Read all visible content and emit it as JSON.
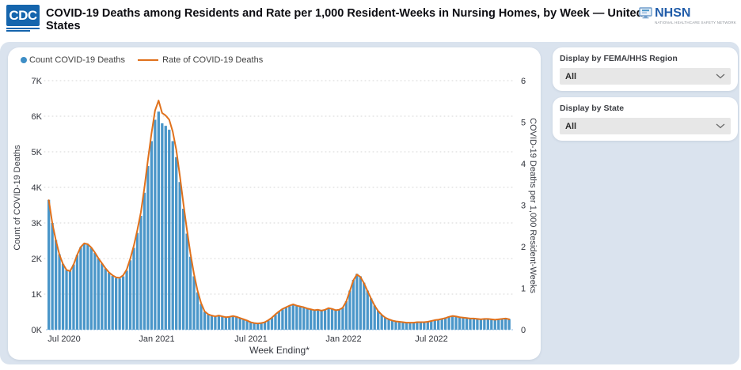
{
  "header": {
    "cdc_logo_text": "CDC",
    "title": "COVID-19 Deaths among Residents and Rate per 1,000 Resident-Weeks in Nursing Homes, by Week — United States",
    "nhsn_logo_text": "NHSN",
    "nhsn_subtitle": "NATIONAL HEALTHCARE SAFETY NETWORK"
  },
  "legend": {
    "count_label": "Count COVID-19 Deaths",
    "rate_label": "Rate of COVID-19 Deaths"
  },
  "filters": [
    {
      "label": "Display by FEMA/HHS Region",
      "value": "All"
    },
    {
      "label": "Display by State",
      "value": "All"
    }
  ],
  "colors": {
    "bar": "#4A96C9",
    "line": "#E0711C",
    "legend_dot": "#3E8EC6",
    "cdc_blue": "#1565AD",
    "nhsn_blue": "#205CA9",
    "panel_bg": "#DAE3EE",
    "grid": "#D6D6D6",
    "baseline": "#A6C9EA",
    "axis_text": "#30333B"
  },
  "chart_data": {
    "type": "bar",
    "title": "COVID-19 Deaths among Residents and Rate per 1,000 Resident-Weeks in Nursing Homes, by Week — United States",
    "xlabel": "Week Ending*",
    "ylabel_left": "Count of COVID-19 Deaths",
    "ylabel_right": "COVID-19 Deaths per 1,000 Resident-Weeks",
    "ylim_left": [
      0,
      7000
    ],
    "ylim_right": [
      0,
      6
    ],
    "yticks_left": [
      "0K",
      "1K",
      "2K",
      "3K",
      "4K",
      "5K",
      "6K",
      "7K"
    ],
    "yticks_right": [
      "0",
      "1",
      "2",
      "3",
      "4",
      "5",
      "6"
    ],
    "xticks": [
      "Jul 2020",
      "Jan 2021",
      "Jul 2021",
      "Jan 2022",
      "Jul 2022"
    ],
    "grid": "horizontal-dotted",
    "legend_position": "top-left",
    "x": [
      "2020-05-31",
      "2020-06-07",
      "2020-06-14",
      "2020-06-21",
      "2020-06-28",
      "2020-07-05",
      "2020-07-12",
      "2020-07-19",
      "2020-07-26",
      "2020-08-02",
      "2020-08-09",
      "2020-08-16",
      "2020-08-23",
      "2020-08-30",
      "2020-09-06",
      "2020-09-13",
      "2020-09-20",
      "2020-09-27",
      "2020-10-04",
      "2020-10-11",
      "2020-10-18",
      "2020-10-25",
      "2020-11-01",
      "2020-11-08",
      "2020-11-15",
      "2020-11-22",
      "2020-11-29",
      "2020-12-06",
      "2020-12-13",
      "2020-12-20",
      "2020-12-27",
      "2021-01-03",
      "2021-01-10",
      "2021-01-17",
      "2021-01-24",
      "2021-01-31",
      "2021-02-07",
      "2021-02-14",
      "2021-02-21",
      "2021-02-28",
      "2021-03-07",
      "2021-03-14",
      "2021-03-21",
      "2021-03-28",
      "2021-04-04",
      "2021-04-11",
      "2021-04-18",
      "2021-04-25",
      "2021-05-02",
      "2021-05-09",
      "2021-05-16",
      "2021-05-23",
      "2021-05-30",
      "2021-06-06",
      "2021-06-13",
      "2021-06-20",
      "2021-06-27",
      "2021-07-04",
      "2021-07-11",
      "2021-07-18",
      "2021-07-25",
      "2021-08-01",
      "2021-08-08",
      "2021-08-15",
      "2021-08-22",
      "2021-08-29",
      "2021-09-05",
      "2021-09-12",
      "2021-09-19",
      "2021-09-26",
      "2021-10-03",
      "2021-10-10",
      "2021-10-17",
      "2021-10-24",
      "2021-10-31",
      "2021-11-07",
      "2021-11-14",
      "2021-11-21",
      "2021-11-28",
      "2021-12-05",
      "2021-12-12",
      "2021-12-19",
      "2021-12-26",
      "2022-01-02",
      "2022-01-09",
      "2022-01-16",
      "2022-01-23",
      "2022-01-30",
      "2022-02-06",
      "2022-02-13",
      "2022-02-20",
      "2022-02-27",
      "2022-03-06",
      "2022-03-13",
      "2022-03-20",
      "2022-03-27",
      "2022-04-03",
      "2022-04-10",
      "2022-04-17",
      "2022-04-24",
      "2022-05-01",
      "2022-05-08",
      "2022-05-15",
      "2022-05-22",
      "2022-05-29",
      "2022-06-05",
      "2022-06-12",
      "2022-06-19",
      "2022-06-26",
      "2022-07-03",
      "2022-07-10",
      "2022-07-17",
      "2022-07-24",
      "2022-07-31",
      "2022-08-07",
      "2022-08-14",
      "2022-08-21",
      "2022-08-28",
      "2022-09-04",
      "2022-09-11",
      "2022-09-18",
      "2022-09-25",
      "2022-10-02",
      "2022-10-09",
      "2022-10-16",
      "2022-10-23",
      "2022-10-30",
      "2022-11-06",
      "2022-11-13",
      "2022-11-20",
      "2022-11-27"
    ],
    "series": [
      {
        "name": "Count COVID-19 Deaths",
        "type": "bar",
        "axis": "left",
        "color": "#4A96C9",
        "values": [
          3650,
          3000,
          2520,
          2120,
          1850,
          1680,
          1650,
          1830,
          2100,
          2320,
          2420,
          2400,
          2300,
          2160,
          2000,
          1860,
          1720,
          1600,
          1510,
          1450,
          1440,
          1500,
          1660,
          1950,
          2300,
          2720,
          3200,
          3850,
          4600,
          5300,
          5900,
          6130,
          5800,
          5730,
          5620,
          5300,
          4850,
          4150,
          3400,
          2700,
          2050,
          1500,
          1050,
          720,
          500,
          420,
          380,
          360,
          380,
          360,
          340,
          350,
          370,
          350,
          320,
          280,
          250,
          210,
          180,
          170,
          180,
          200,
          260,
          330,
          420,
          500,
          570,
          620,
          660,
          690,
          670,
          640,
          620,
          590,
          560,
          540,
          550,
          530,
          550,
          600,
          580,
          540,
          560,
          620,
          800,
          1100,
          1400,
          1570,
          1500,
          1320,
          1100,
          880,
          680,
          530,
          420,
          340,
          290,
          260,
          240,
          220,
          210,
          200,
          200,
          200,
          210,
          210,
          220,
          230,
          250,
          270,
          290,
          310,
          340,
          370,
          400,
          380,
          360,
          350,
          340,
          330,
          320,
          310,
          300,
          310,
          320,
          300,
          290,
          300,
          320,
          330,
          300
        ]
      },
      {
        "name": "Rate of COVID-19 Deaths",
        "type": "line",
        "axis": "right",
        "color": "#E0711C",
        "values": [
          3.12,
          2.56,
          2.15,
          1.81,
          1.58,
          1.44,
          1.41,
          1.57,
          1.8,
          1.99,
          2.08,
          2.06,
          1.98,
          1.86,
          1.72,
          1.6,
          1.48,
          1.38,
          1.31,
          1.26,
          1.25,
          1.31,
          1.45,
          1.71,
          2.02,
          2.4,
          2.83,
          3.42,
          4.1,
          4.73,
          5.28,
          5.52,
          5.22,
          5.16,
          5.06,
          4.77,
          4.33,
          3.71,
          3.04,
          2.41,
          1.83,
          1.34,
          0.94,
          0.64,
          0.44,
          0.37,
          0.34,
          0.32,
          0.34,
          0.32,
          0.3,
          0.31,
          0.33,
          0.31,
          0.28,
          0.25,
          0.22,
          0.18,
          0.16,
          0.15,
          0.16,
          0.18,
          0.23,
          0.29,
          0.37,
          0.44,
          0.5,
          0.54,
          0.58,
          0.61,
          0.58,
          0.56,
          0.54,
          0.51,
          0.49,
          0.47,
          0.48,
          0.46,
          0.48,
          0.52,
          0.5,
          0.47,
          0.48,
          0.53,
          0.68,
          0.93,
          1.19,
          1.33,
          1.27,
          1.12,
          0.93,
          0.75,
          0.58,
          0.45,
          0.36,
          0.29,
          0.25,
          0.22,
          0.2,
          0.19,
          0.18,
          0.17,
          0.17,
          0.17,
          0.18,
          0.18,
          0.18,
          0.19,
          0.21,
          0.23,
          0.24,
          0.26,
          0.28,
          0.31,
          0.33,
          0.32,
          0.3,
          0.29,
          0.28,
          0.27,
          0.27,
          0.26,
          0.25,
          0.26,
          0.26,
          0.25,
          0.24,
          0.25,
          0.26,
          0.27,
          0.25
        ]
      }
    ]
  }
}
